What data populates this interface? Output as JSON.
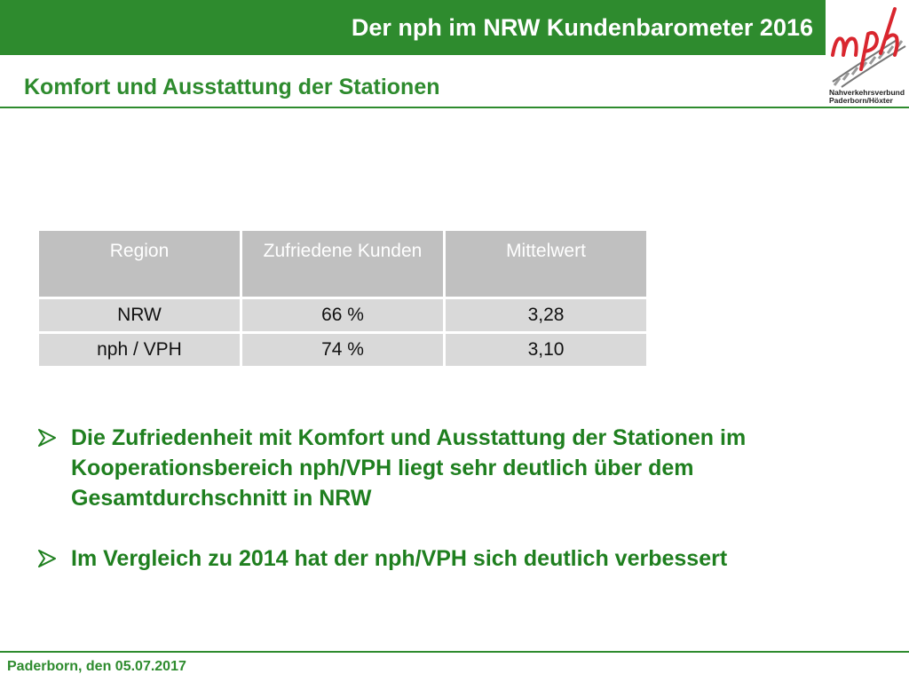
{
  "header": {
    "title": "Der nph im NRW Kundenbarometer 2016"
  },
  "logo": {
    "line1": "Nahverkehrsverbund",
    "line2": "Paderborn/Höxter"
  },
  "subtitle": "Komfort und Ausstattung der Stationen",
  "table": {
    "headers": [
      "Region",
      "Zufriedene Kunden",
      "Mittelwert"
    ],
    "rows": [
      [
        "NRW",
        "66 %",
        "3,28"
      ],
      [
        "nph / VPH",
        "74 %",
        "3,10"
      ]
    ]
  },
  "bullets": [
    "Die Zufriedenheit mit Komfort und Ausstattung der Stationen im Kooperationsbereich nph/VPH liegt sehr deutlich über dem Gesamtdurchschnitt in NRW",
    "Im Vergleich zu 2014 hat der nph/VPH sich deutlich verbessert"
  ],
  "footer": "Paderborn, den 05.07.2017",
  "colors": {
    "brand_green": "#2e8b2e",
    "logo_red": "#d9262e",
    "header_cell": "#c0c0c0",
    "body_cell": "#d9d9d9"
  }
}
